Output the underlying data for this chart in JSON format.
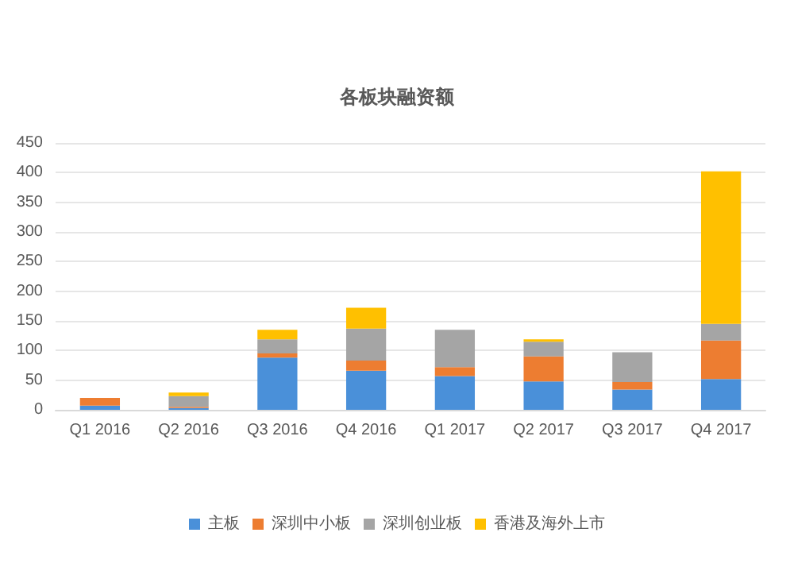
{
  "chart_data": {
    "type": "bar",
    "title": "各板块融资额",
    "stacked": true,
    "categories": [
      "Q1 2016",
      "Q2 2016",
      "Q3 2016",
      "Q4 2016",
      "Q1 2017",
      "Q2 2017",
      "Q3 2017",
      "Q4 2017"
    ],
    "series": [
      {
        "name": "主板",
        "color": "#4a90d9",
        "values": [
          7,
          3,
          88,
          66,
          57,
          48,
          34,
          52
        ]
      },
      {
        "name": "深圳中小板",
        "color": "#ed7d31",
        "values": [
          13,
          2,
          7,
          17,
          15,
          42,
          13,
          65
        ]
      },
      {
        "name": "深圳创业板",
        "color": "#a5a5a5",
        "values": [
          null,
          18,
          24,
          54,
          63,
          25,
          50,
          28
        ]
      },
      {
        "name": "香港及海外上市",
        "color": "#ffc000",
        "values": [
          0,
          6,
          16,
          35,
          0,
          4,
          0,
          257
        ]
      }
    ],
    "ylim": [
      0,
      450
    ],
    "yticks": [
      0,
      50,
      100,
      150,
      200,
      250,
      300,
      350,
      400,
      450
    ],
    "grid": "y",
    "legend": "bottom"
  }
}
